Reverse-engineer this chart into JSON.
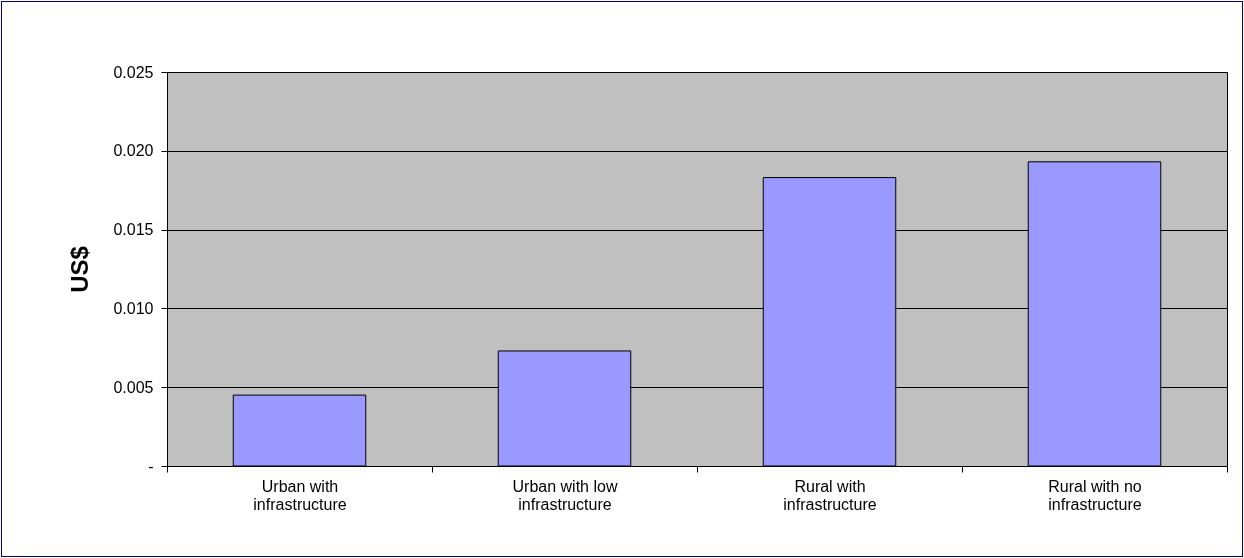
{
  "chart_data": {
    "type": "bar",
    "ylabel": "US$",
    "categories": [
      "Urban with infrastructure",
      "Urban with low infrastructure",
      "Rural with infrastructure",
      "Rural with no infrastructure"
    ],
    "values": [
      0.0045,
      0.0073,
      0.0183,
      0.0193
    ],
    "color": "#9999ff",
    "ylim": [
      0,
      0.025
    ],
    "yticks": [
      {
        "value": 0,
        "label": "-"
      },
      0.005,
      {
        "value": 0.01,
        "label": "0.010"
      },
      0.015,
      {
        "value": 0.02,
        "label": "0.020"
      },
      0.025
    ],
    "grid": "y"
  }
}
